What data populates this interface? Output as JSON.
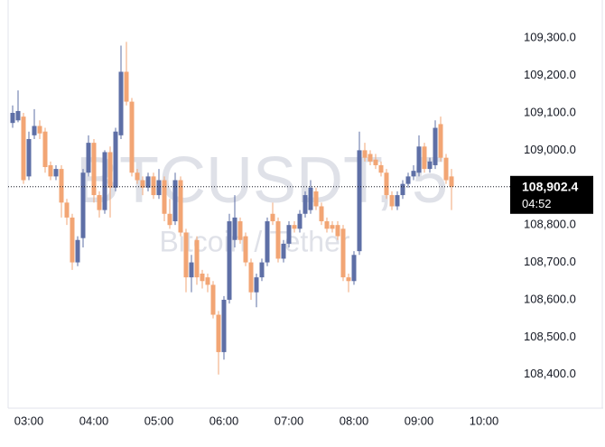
{
  "chart_data": {
    "type": "candlestick",
    "watermark": {
      "symbol": "BTCUSDT, 5",
      "description": "Bitcoin / Tether"
    },
    "x": [
      "02:45",
      "02:50",
      "02:55",
      "03:00",
      "03:05",
      "03:10",
      "03:15",
      "03:20",
      "03:25",
      "03:30",
      "03:35",
      "03:40",
      "03:45",
      "03:50",
      "03:55",
      "04:00",
      "04:05",
      "04:10",
      "04:15",
      "04:20",
      "04:25",
      "04:30",
      "04:35",
      "04:40",
      "04:45",
      "04:50",
      "04:55",
      "05:00",
      "05:05",
      "05:10",
      "05:15",
      "05:20",
      "05:25",
      "05:30",
      "05:35",
      "05:40",
      "05:45",
      "05:50",
      "05:55",
      "06:00",
      "06:05",
      "06:10",
      "06:15",
      "06:20",
      "06:25",
      "06:30",
      "06:35",
      "06:40",
      "06:45",
      "06:50",
      "06:55",
      "07:00",
      "07:05",
      "07:10",
      "07:15",
      "07:20",
      "07:25",
      "07:30",
      "07:35",
      "07:40",
      "07:45",
      "07:50",
      "07:55",
      "08:00",
      "08:05",
      "08:10",
      "08:15",
      "08:20",
      "08:25",
      "08:30",
      "08:35",
      "08:40",
      "08:45",
      "08:50",
      "08:55",
      "09:00",
      "09:05",
      "09:10",
      "09:15",
      "09:20",
      "09:25",
      "09:30"
    ],
    "open": [
      109073,
      109080,
      109090,
      108930,
      109040,
      109065,
      109050,
      108960,
      108930,
      108950,
      108860,
      108820,
      108700,
      108765,
      108940,
      109020,
      108880,
      108840,
      108995,
      108900,
      109040,
      109210,
      109130,
      108940,
      108920,
      108900,
      108930,
      108880,
      108920,
      108830,
      108810,
      108920,
      108780,
      108660,
      108760,
      108670,
      108660,
      108640,
      108560,
      108460,
      108600,
      108760,
      108810,
      108770,
      108700,
      108620,
      108660,
      108700,
      108830,
      108810,
      108710,
      108750,
      108800,
      108790,
      108830,
      108840,
      108890,
      108850,
      108810,
      108800,
      108800,
      108790,
      108660,
      108650,
      108730,
      109000,
      108990,
      108975,
      108960,
      108940,
      108880,
      108850,
      108880,
      108910,
      108930,
      108940,
      109010,
      108950,
      108960,
      109070,
      108980,
      108930
    ],
    "high": [
      109120,
      109160,
      109100,
      109050,
      109110,
      109080,
      109060,
      108970,
      108960,
      108960,
      108870,
      108830,
      108770,
      108950,
      109040,
      109030,
      108890,
      109000,
      109010,
      109060,
      109280,
      109290,
      109140,
      108950,
      108930,
      108940,
      108940,
      108950,
      108930,
      108870,
      108940,
      108930,
      108790,
      108720,
      108770,
      108680,
      108670,
      108650,
      108570,
      108610,
      108830,
      108880,
      108820,
      108780,
      108710,
      108670,
      108710,
      108820,
      108860,
      108820,
      108760,
      108810,
      108810,
      108840,
      108890,
      108920,
      108900,
      108860,
      108820,
      108810,
      108810,
      108800,
      108670,
      108730,
      109050,
      109020,
      109000,
      108990,
      108970,
      108950,
      108890,
      108890,
      108920,
      108940,
      108960,
      109040,
      109020,
      108980,
      109080,
      109090,
      108990,
      108950
    ],
    "low": [
      109060,
      109075,
      108910,
      108920,
      109030,
      109030,
      108940,
      108920,
      108920,
      108820,
      108800,
      108680,
      108690,
      108740,
      108930,
      108860,
      108820,
      108830,
      108820,
      108890,
      109030,
      109120,
      108930,
      108910,
      108880,
      108890,
      108870,
      108870,
      108810,
      108790,
      108800,
      108770,
      108620,
      108620,
      108640,
      108630,
      108620,
      108550,
      108400,
      108440,
      108590,
      108740,
      108750,
      108690,
      108600,
      108580,
      108650,
      108690,
      108800,
      108700,
      108700,
      108740,
      108780,
      108780,
      108820,
      108830,
      108840,
      108800,
      108780,
      108780,
      108760,
      108650,
      108620,
      108640,
      108720,
      108970,
      108960,
      108950,
      108930,
      108870,
      108840,
      108840,
      108870,
      108900,
      108920,
      108930,
      108940,
      108940,
      108950,
      108970,
      108910,
      108840
    ],
    "close": [
      109100,
      109105,
      108920,
      109030,
      109065,
      109045,
      108955,
      108930,
      108950,
      108860,
      108820,
      108700,
      108760,
      108940,
      109020,
      108880,
      108840,
      108995,
      108900,
      109050,
      109210,
      109130,
      108940,
      108920,
      108900,
      108930,
      108880,
      108920,
      108830,
      108800,
      108920,
      108780,
      108660,
      108700,
      108660,
      108650,
      108640,
      108560,
      108460,
      108600,
      108810,
      108820,
      108760,
      108700,
      108620,
      108660,
      108700,
      108810,
      108810,
      108710,
      108750,
      108800,
      108790,
      108830,
      108880,
      108900,
      108850,
      108810,
      108790,
      108790,
      108770,
      108660,
      108650,
      108720,
      109000,
      108980,
      108970,
      108960,
      108940,
      108880,
      108850,
      108880,
      108910,
      108930,
      108945,
      109010,
      108950,
      108970,
      109060,
      108980,
      108920,
      108902.4
    ],
    "up_color": "#5e6fa6",
    "down_color": "#f2a574",
    "ylim": [
      108310,
      109402
    ],
    "yticks": [
      {
        "value": 108400,
        "label": "108,400.0"
      },
      {
        "value": 108500,
        "label": "108,500.0"
      },
      {
        "value": 108600,
        "label": "108,600.0"
      },
      {
        "value": 108700,
        "label": "108,700.0"
      },
      {
        "value": 108800,
        "label": "108,800.0"
      },
      {
        "value": 108900,
        "label": "108,900.0"
      },
      {
        "value": 109000,
        "label": "109,000.0"
      },
      {
        "value": 109100,
        "label": "109,100.0"
      },
      {
        "value": 109200,
        "label": "109,200.0"
      },
      {
        "value": 109300,
        "label": "109,300.0"
      }
    ],
    "xticks": [
      "03:00",
      "04:00",
      "05:00",
      "06:00",
      "07:00",
      "08:00",
      "09:00",
      "10:00"
    ],
    "last_price": {
      "value": 108902.4,
      "label": "108,902.4"
    },
    "countdown": "04:52"
  }
}
